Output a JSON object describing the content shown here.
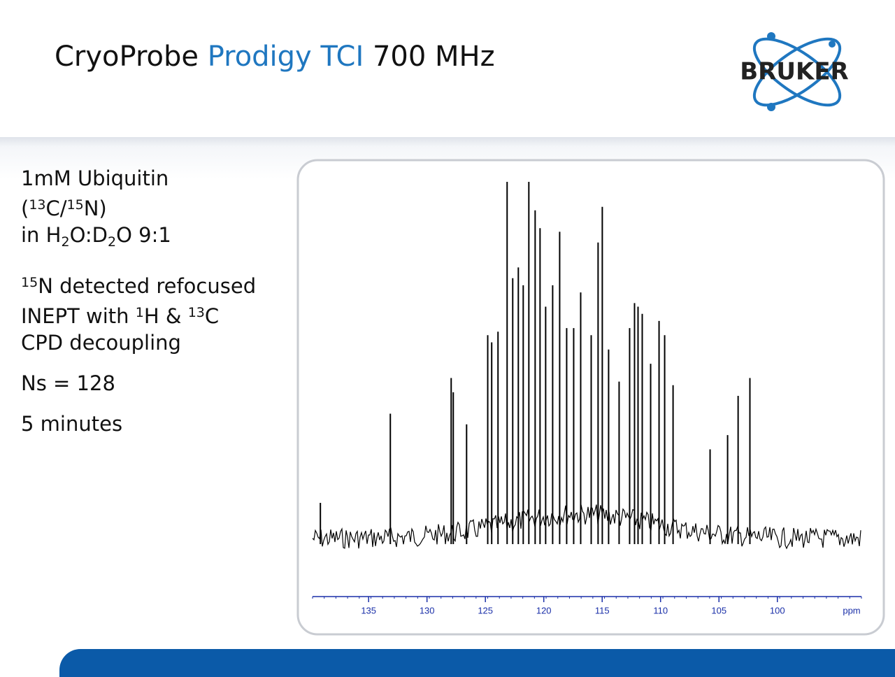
{
  "header": {
    "title": [
      "CryoProbe ",
      "Prodigy TCI",
      " 700 MHz"
    ],
    "logo": "BRUKER"
  },
  "notes": [
    [
      [
        {
          "text": "1mM Ubiquitin"
        }
      ],
      [
        {
          "text": "("
        },
        {
          "text": "13",
          "sup": true
        },
        {
          "text": "C/"
        },
        {
          "text": "15",
          "sup": true
        },
        {
          "text": "N)"
        }
      ],
      [
        {
          "text": "in H"
        },
        {
          "text": "2",
          "sub": true
        },
        {
          "text": "O:D"
        },
        {
          "text": "2",
          "sub": true
        },
        {
          "text": "O 9:1"
        }
      ]
    ],
    [
      [
        {
          "text": "15",
          "sup": true
        },
        {
          "text": "N detected refocused"
        }
      ],
      [
        {
          "text": "INEPT with "
        },
        {
          "text": "1",
          "sup": true
        },
        {
          "text": "H & "
        },
        {
          "text": "13",
          "sup": true
        },
        {
          "text": "C"
        }
      ],
      [
        {
          "text": "CPD decoupling"
        }
      ]
    ],
    [
      [
        {
          "text": "Ns = 128"
        }
      ]
    ],
    [
      [
        {
          "text": "5 minutes"
        }
      ]
    ]
  ],
  "chart_data": {
    "type": "spectrum",
    "x_label": "ppm",
    "xlim": [
      139.8,
      92.8
    ],
    "xticks": [
      135,
      130,
      125,
      120,
      115,
      110,
      105,
      100
    ],
    "ylim": [
      0,
      100
    ],
    "color": "#000000",
    "axis_color": "#1a2fa8",
    "x": [
      139.13,
      133.14,
      127.93,
      127.75,
      126.61,
      124.8,
      124.46,
      123.92,
      123.14,
      122.66,
      122.18,
      121.76,
      121.28,
      120.74,
      120.32,
      119.84,
      119.24,
      118.64,
      118.04,
      117.44,
      116.84,
      115.94,
      115.35,
      114.99,
      114.45,
      113.55,
      112.65,
      112.23,
      111.93,
      111.57,
      110.85,
      110.13,
      109.65,
      108.93,
      105.76,
      104.26,
      103.36,
      102.35
    ],
    "values": [
      10,
      35,
      45,
      41,
      32,
      57,
      55,
      58,
      100,
      73,
      76,
      71,
      100,
      92,
      87,
      65,
      71,
      86,
      59,
      59,
      69,
      57,
      83,
      93,
      53,
      44,
      59,
      66,
      65,
      63,
      49,
      61,
      57,
      43,
      25,
      29,
      40,
      45
    ]
  }
}
